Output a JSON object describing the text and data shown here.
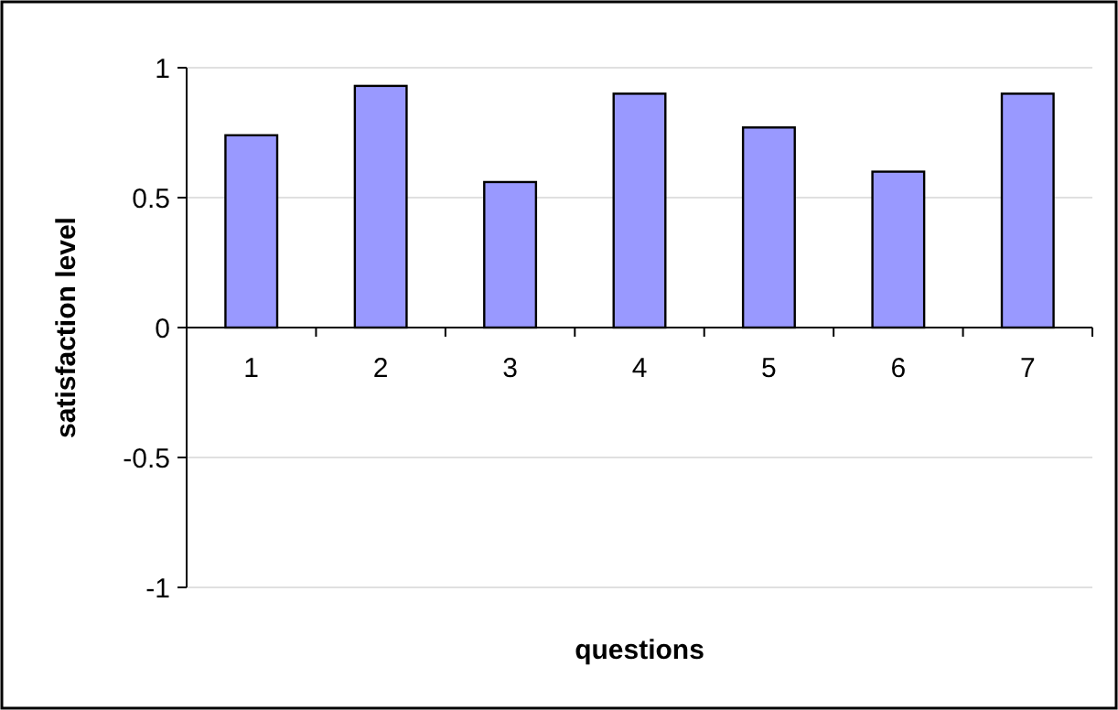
{
  "chart_data": {
    "type": "bar",
    "xlabel": "questions",
    "ylabel": "satisfaction level",
    "categories": [
      "1",
      "2",
      "3",
      "4",
      "5",
      "6",
      "7"
    ],
    "values": [
      0.74,
      0.93,
      0.56,
      0.9,
      0.77,
      0.6,
      0.9
    ],
    "color": "#9999ff",
    "ylim": [
      -1,
      1
    ],
    "yticks": [
      -1,
      -0.5,
      0,
      0.5,
      1
    ],
    "grid": "y"
  }
}
